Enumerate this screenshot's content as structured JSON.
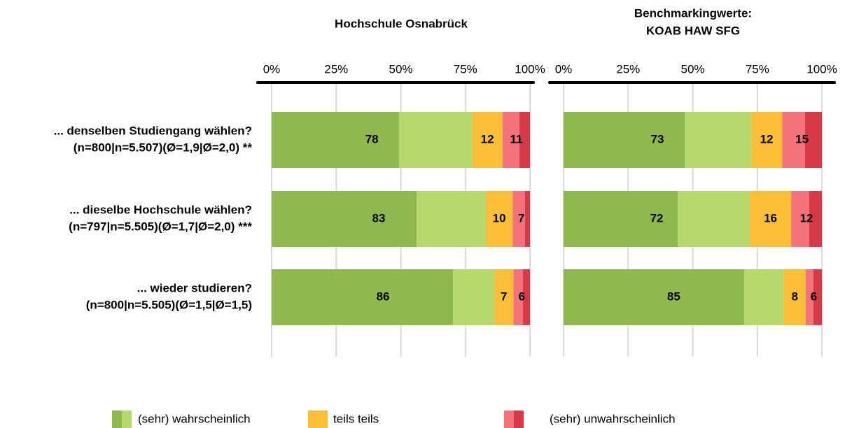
{
  "chart_data": {
    "type": "bar",
    "categories": [
      [
        "... denselben Studiengang wählen?",
        "(n=800|n=5.507)(Ø=1,9|Ø=2,0) **"
      ],
      [
        "... dieselbe Hochschule wählen?",
        "(n=797|n=5.505)(Ø=1,7|Ø=2,0) ***"
      ],
      [
        "... wieder studieren?",
        "(n=800|n=5.505)(Ø=1,5|Ø=1,5)"
      ]
    ],
    "xlim": [
      0,
      100
    ],
    "xticks": [
      {
        "value": 0,
        "label": "0%"
      },
      {
        "value": 25,
        "label": "25%"
      },
      {
        "value": 50,
        "label": "50%"
      },
      {
        "value": 75,
        "label": "75%"
      },
      {
        "value": 100,
        "label": "100%"
      }
    ],
    "grid": true,
    "series": [
      {
        "name": "(sehr) wahrscheinlich",
        "colors": [
          "#8fb84e",
          "#b7d86f"
        ]
      },
      {
        "name": "teils teils",
        "colors": [
          "#fbbe38"
        ]
      },
      {
        "name": "(sehr) unwahrscheinlich",
        "colors": [
          "#f2747a",
          "#d73a46"
        ]
      }
    ],
    "panels": [
      {
        "title": [
          "Hochschule Osnabrück"
        ],
        "series": [
          {
            "values": [
              77.6,
              82.9,
              86.2
            ],
            "value_labels": [
              "78",
              "83",
              "86"
            ],
            "parts": [
              [
                49.3,
                28.3
              ],
              [
                56.1,
                26.8
              ],
              [
                70.2,
                16.0
              ]
            ]
          },
          {
            "values": [
              11.8,
              10.4,
              7.4
            ],
            "value_labels": [
              "12",
              "10",
              "7"
            ],
            "parts": [
              [
                11.8
              ],
              [
                10.4
              ],
              [
                7.4
              ]
            ]
          },
          {
            "values": [
              10.6,
              6.7,
              6.4
            ],
            "value_labels": [
              "11",
              "7",
              "6"
            ],
            "parts": [
              [
                6.5,
                4.1
              ],
              [
                4.8,
                1.9
              ],
              [
                3.7,
                2.7
              ]
            ]
          }
        ]
      },
      {
        "title": [
          "Benchmarkingwerte:",
          "KOAB HAW SFG"
        ],
        "series": [
          {
            "values": [
              72.6,
              72.1,
              85.3
            ],
            "value_labels": [
              "73",
              "72",
              "85"
            ],
            "parts": [
              [
                46.9,
                25.7
              ],
              [
                44.2,
                27.9
              ],
              [
                69.9,
                15.4
              ]
            ]
          },
          {
            "values": [
              12.0,
              16.0,
              8.4
            ],
            "value_labels": [
              "12",
              "16",
              "8"
            ],
            "parts": [
              [
                12.0
              ],
              [
                16.0
              ],
              [
                8.4
              ]
            ]
          },
          {
            "values": [
              15.4,
              11.9,
              6.3
            ],
            "value_labels": [
              "15",
              "12",
              "6"
            ],
            "parts": [
              [
                8.9,
                6.5
              ],
              [
                7.0,
                4.9
              ],
              [
                3.0,
                3.3
              ]
            ]
          }
        ]
      }
    ]
  }
}
